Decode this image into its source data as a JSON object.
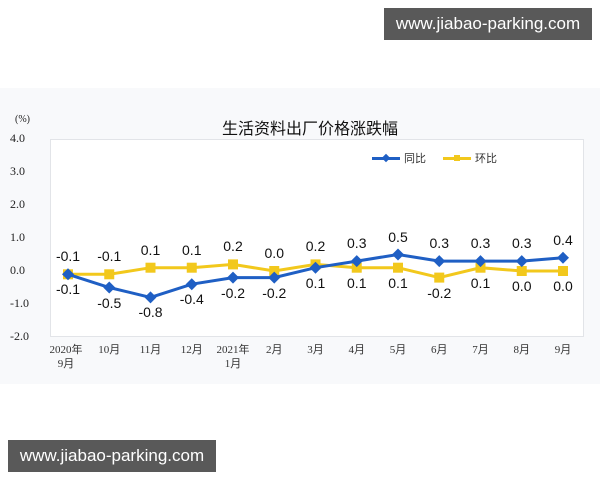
{
  "watermark_top": "www.jiabao-parking.com",
  "watermark_bottom": "www.jiabao-parking.com",
  "chart_data": {
    "type": "line",
    "title": "生活资料出厂价格涨跌幅",
    "ylabel": "(%)",
    "xlabel": "",
    "ylim": [
      -2.0,
      4.0
    ],
    "yticks": [
      "4.0",
      "3.0",
      "2.0",
      "1.0",
      "0.0",
      "-1.0",
      "-2.0"
    ],
    "categories": [
      "2020年9月",
      "10月",
      "11月",
      "12月",
      "2021年1月",
      "2月",
      "3月",
      "4月",
      "5月",
      "6月",
      "7月",
      "8月",
      "9月"
    ],
    "category_labels": [
      [
        "2020年",
        "9月"
      ],
      [
        "10月"
      ],
      [
        "11月"
      ],
      [
        "12月"
      ],
      [
        "2021年",
        "1月"
      ],
      [
        "2月"
      ],
      [
        "3月"
      ],
      [
        "4月"
      ],
      [
        "5月"
      ],
      [
        "6月"
      ],
      [
        "7月"
      ],
      [
        "8月"
      ],
      [
        "9月"
      ]
    ],
    "series": [
      {
        "name": "同比",
        "color": "#1f5fc4",
        "marker": "diamond",
        "values": [
          -0.1,
          -0.5,
          -0.8,
          -0.4,
          -0.2,
          -0.2,
          0.1,
          0.3,
          0.5,
          0.3,
          0.3,
          0.3,
          0.4
        ]
      },
      {
        "name": "环比",
        "color": "#f2c81c",
        "marker": "square",
        "values": [
          -0.1,
          -0.1,
          0.1,
          0.1,
          0.2,
          0.0,
          0.2,
          0.1,
          0.1,
          -0.2,
          0.1,
          0.0,
          0.0
        ]
      }
    ],
    "legend_position": "top-right",
    "grid": false
  }
}
